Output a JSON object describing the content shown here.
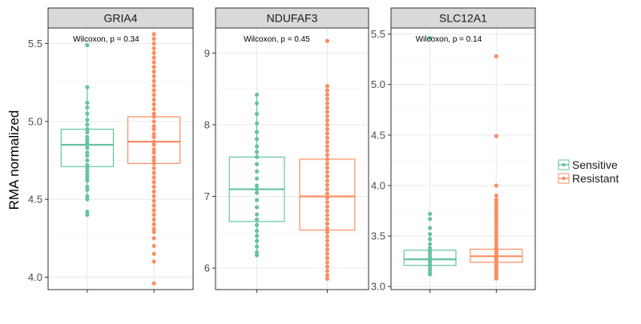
{
  "y_axis_label": "RMA normalized",
  "legend": {
    "position": "right",
    "items": [
      {
        "label": "Sensitive",
        "color": "#66C2A5"
      },
      {
        "label": "Resistant",
        "color": "#FC8D62"
      }
    ]
  },
  "colors": {
    "sensitive": "#66C2A5",
    "resistant": "#FC8D62",
    "strip_background": "#D9D9D9",
    "grid_major": "#EBEBEB",
    "grid_minor": "#F5F5F5",
    "panel_border": "#333333"
  },
  "chart_data": [
    {
      "type": "box",
      "title": "GRIA4",
      "annotation": "Wilcoxon, p = 0.34",
      "ylim": [
        3.92,
        5.6
      ],
      "yticks": [
        4.0,
        4.5,
        5.0,
        5.5
      ],
      "ytick_labels": [
        "4.0",
        "4.5",
        "5.0",
        "5.5"
      ],
      "series": [
        {
          "name": "Sensitive",
          "q1": 4.71,
          "median": 4.85,
          "q3": 4.95,
          "whisker_low": 4.5,
          "whisker_high": 5.22,
          "points": [
            5.49,
            5.22,
            5.12,
            5.09,
            5.05,
            5.01,
            4.98,
            4.95,
            4.93,
            4.9,
            4.88,
            4.86,
            4.85,
            4.83,
            4.8,
            4.78,
            4.75,
            4.72,
            4.7,
            4.68,
            4.66,
            4.64,
            4.62,
            4.58,
            4.56,
            4.52,
            4.5,
            4.42,
            4.4
          ]
        },
        {
          "name": "Resistant",
          "q1": 4.73,
          "median": 4.87,
          "q3": 5.03,
          "whisker_low": 4.29,
          "whisker_high": 5.47,
          "points": [
            5.56,
            5.53,
            5.5,
            5.47,
            5.44,
            5.41,
            5.38,
            5.35,
            5.32,
            5.29,
            5.26,
            5.23,
            5.2,
            5.17,
            5.14,
            5.11,
            5.08,
            5.05,
            5.03,
            5.0,
            4.97,
            4.95,
            4.92,
            4.9,
            4.87,
            4.85,
            4.82,
            4.8,
            4.77,
            4.75,
            4.73,
            4.7,
            4.67,
            4.64,
            4.61,
            4.58,
            4.55,
            4.52,
            4.49,
            4.46,
            4.43,
            4.4,
            4.37,
            4.34,
            4.31,
            4.29,
            4.25,
            4.2,
            4.15,
            4.1,
            3.96
          ]
        }
      ]
    },
    {
      "type": "box",
      "title": "NDUFAF3",
      "annotation": "Wilcoxon, p = 0.45",
      "ylim": [
        5.7,
        9.35
      ],
      "yticks": [
        6,
        7,
        8,
        9
      ],
      "ytick_labels": [
        "6",
        "7",
        "8",
        "9"
      ],
      "series": [
        {
          "name": "Sensitive",
          "q1": 6.65,
          "median": 7.1,
          "q3": 7.55,
          "whisker_low": 6.18,
          "whisker_high": 8.42,
          "points": [
            8.42,
            8.3,
            8.15,
            8.02,
            7.9,
            7.8,
            7.7,
            7.62,
            7.55,
            7.45,
            7.35,
            7.25,
            7.15,
            7.1,
            7.05,
            6.95,
            6.85,
            6.75,
            6.68,
            6.6,
            6.52,
            6.45,
            6.38,
            6.3,
            6.22,
            6.18
          ]
        },
        {
          "name": "Resistant",
          "q1": 6.53,
          "median": 7.0,
          "q3": 7.52,
          "whisker_low": 5.85,
          "whisker_high": 8.54,
          "points": [
            9.17,
            8.54,
            8.48,
            8.42,
            8.36,
            8.3,
            8.24,
            8.18,
            8.12,
            8.06,
            8.0,
            7.94,
            7.88,
            7.82,
            7.76,
            7.7,
            7.64,
            7.58,
            7.52,
            7.46,
            7.4,
            7.34,
            7.28,
            7.22,
            7.16,
            7.1,
            7.04,
            6.98,
            6.92,
            6.86,
            6.8,
            6.74,
            6.68,
            6.62,
            6.56,
            6.5,
            6.44,
            6.38,
            6.32,
            6.26,
            6.2,
            6.14,
            6.08,
            6.02,
            5.96,
            5.9,
            5.85
          ]
        }
      ]
    },
    {
      "type": "box",
      "title": "SLC12A1",
      "annotation": "Wilcoxon, p = 0.14",
      "ylim": [
        2.97,
        5.56
      ],
      "yticks": [
        3.0,
        3.5,
        4.0,
        4.5,
        5.0,
        5.5
      ],
      "ytick_labels": [
        "3.0",
        "3.5",
        "4.0",
        "4.5",
        "5.0",
        "5.5"
      ],
      "series": [
        {
          "name": "Sensitive",
          "q1": 3.21,
          "median": 3.27,
          "q3": 3.36,
          "whisker_low": 3.12,
          "whisker_high": 3.52,
          "points": [
            5.46,
            3.72,
            3.67,
            3.58,
            3.52,
            3.47,
            3.42,
            3.38,
            3.35,
            3.32,
            3.29,
            3.27,
            3.25,
            3.22,
            3.2,
            3.17,
            3.14,
            3.12
          ]
        },
        {
          "name": "Resistant",
          "q1": 3.24,
          "median": 3.3,
          "q3": 3.37,
          "whisker_low": 3.07,
          "whisker_high": 3.55,
          "points": [
            5.28,
            4.49,
            4.0,
            3.9,
            3.86,
            3.83,
            3.8,
            3.77,
            3.74,
            3.71,
            3.68,
            3.65,
            3.62,
            3.59,
            3.56,
            3.53,
            3.5,
            3.47,
            3.44,
            3.41,
            3.38,
            3.36,
            3.34,
            3.32,
            3.3,
            3.28,
            3.26,
            3.24,
            3.22,
            3.2,
            3.18,
            3.16,
            3.14,
            3.12,
            3.1,
            3.08
          ]
        }
      ]
    }
  ]
}
